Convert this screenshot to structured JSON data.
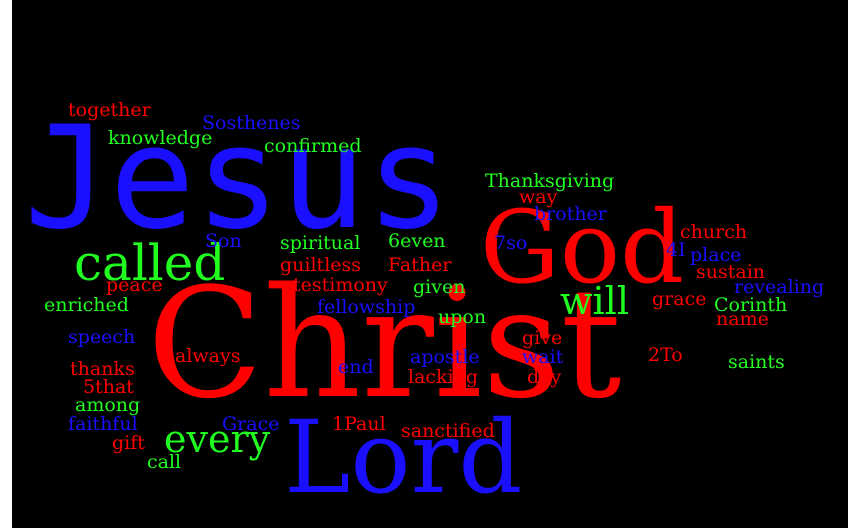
{
  "colors": {
    "background": "#000000",
    "red": "#ff0000",
    "blue": "#1a10ff",
    "green": "#20ff20"
  },
  "words": {
    "jesus": "Jesus",
    "christ": "Christ",
    "god": "God",
    "lord": "Lord",
    "called": "called",
    "will": "will",
    "every": "every",
    "together": "together",
    "sosthenes": "Sosthenes",
    "knowledge": "knowledge",
    "confirmed": "confirmed",
    "thanksgiving": "Thanksgiving",
    "way": "way",
    "brother": "brother",
    "church": "church",
    "four_i": "4I",
    "place": "place",
    "sustain": "sustain",
    "revealing": "revealing",
    "corinth": "Corinth",
    "grace_lower": "grace",
    "name": "name",
    "son": "Son",
    "spiritual": "spiritual",
    "six_even": "6even",
    "seven_so": "7so",
    "guiltless": "guiltless",
    "father": "Father",
    "peace": "peace",
    "testimony": "testimony",
    "given": "given",
    "enriched": "enriched",
    "fellowship": "fellowship",
    "upon": "upon",
    "give": "give",
    "speech": "speech",
    "always": "always",
    "end": "end",
    "apostle": "apostle",
    "wait": "wait",
    "two_to": "2To",
    "saints": "saints",
    "thanks": "thanks",
    "lacking": "lacking",
    "day": "day",
    "five_that": "5that",
    "among": "among",
    "faithful": "faithful",
    "grace_upper": "Grace",
    "one_paul": "1Paul",
    "sanctified": "sanctified",
    "gift": "gift",
    "call": "call"
  }
}
